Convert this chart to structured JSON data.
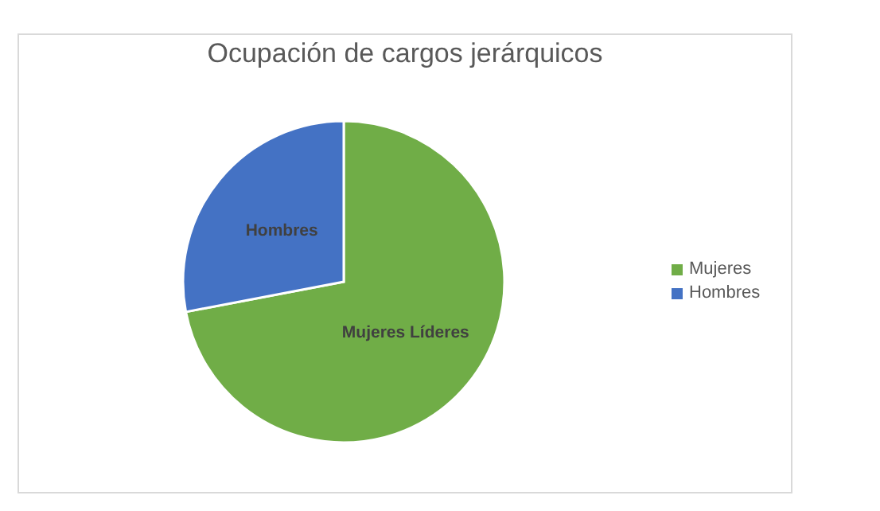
{
  "chart_data": {
    "type": "pie",
    "title": "Ocupación de cargos jerárquicos",
    "categories": [
      "Mujeres",
      "Hombres"
    ],
    "values": [
      72,
      28
    ],
    "colors": [
      "#70ad47",
      "#4472c4"
    ],
    "value_labels": [
      "Mujeres Líderes",
      "Hombres"
    ],
    "legend": "right"
  }
}
